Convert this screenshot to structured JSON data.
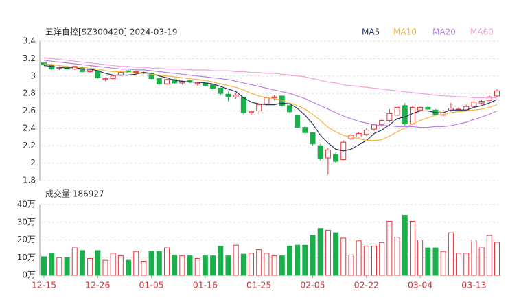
{
  "chart_data": [
    {
      "type": "candlestick",
      "title": "五洋自控[SZ300420] 2024-03-19",
      "up_color": "#e8323c",
      "down_color": "#1aaf4b",
      "ylim": [
        1.8,
        3.4
      ],
      "yticks": [
        1.8,
        2,
        2.2,
        2.4,
        2.6,
        2.8,
        3,
        3.2,
        3.4
      ],
      "grid": true,
      "open": [
        3.15,
        3.13,
        3.09,
        3.1,
        3.08,
        3.1,
        3.05,
        3.06,
        2.96,
        2.97,
        3.01,
        3.06,
        3.04,
        3.03,
        3.03,
        2.97,
        2.91,
        2.96,
        2.92,
        2.95,
        2.91,
        2.92,
        2.9,
        2.86,
        2.79,
        2.76,
        2.75,
        2.58,
        2.6,
        2.68,
        2.75,
        2.77,
        2.66,
        2.55,
        2.41,
        2.35,
        2.2,
        2.06,
        2.1,
        2.04,
        2.28,
        2.3,
        2.33,
        2.39,
        2.44,
        2.49,
        2.55,
        2.66,
        2.45,
        2.61,
        2.64,
        2.61,
        2.55,
        2.6,
        2.62,
        2.61,
        2.65,
        2.69,
        2.72,
        2.77
      ],
      "high": [
        3.15,
        3.14,
        3.11,
        3.12,
        3.12,
        3.11,
        3.08,
        3.07,
        2.98,
        3.01,
        3.05,
        3.07,
        3.06,
        3.05,
        3.04,
        2.98,
        2.97,
        2.97,
        2.95,
        2.96,
        2.93,
        2.93,
        2.91,
        2.87,
        2.82,
        2.8,
        2.76,
        2.6,
        2.68,
        2.76,
        2.78,
        2.77,
        2.67,
        2.56,
        2.42,
        2.35,
        2.22,
        2.17,
        2.13,
        2.26,
        2.34,
        2.36,
        2.4,
        2.45,
        2.5,
        2.62,
        2.66,
        2.69,
        2.66,
        2.65,
        2.66,
        2.62,
        2.61,
        2.69,
        2.64,
        2.67,
        2.72,
        2.73,
        2.78,
        2.85
      ],
      "low": [
        3.12,
        3.07,
        3.07,
        3.08,
        3.07,
        3.04,
        3.04,
        2.97,
        2.94,
        2.95,
        3.0,
        3.04,
        3.02,
        3.02,
        2.96,
        2.89,
        2.9,
        2.91,
        2.9,
        2.92,
        2.89,
        2.88,
        2.85,
        2.78,
        2.71,
        2.74,
        2.56,
        2.55,
        2.56,
        2.66,
        2.72,
        2.65,
        2.58,
        2.4,
        2.33,
        2.2,
        2.03,
        1.87,
        2.0,
        2.03,
        2.26,
        2.29,
        2.31,
        2.37,
        2.42,
        2.47,
        2.55,
        2.43,
        2.44,
        2.6,
        2.61,
        2.55,
        2.53,
        2.59,
        2.6,
        2.6,
        2.64,
        2.67,
        2.71,
        2.76
      ],
      "close": [
        3.13,
        3.08,
        3.1,
        3.08,
        3.11,
        3.05,
        3.07,
        2.98,
        2.97,
        3.0,
        3.04,
        3.05,
        3.05,
        3.04,
        2.97,
        2.91,
        2.96,
        2.92,
        2.94,
        2.93,
        2.92,
        2.89,
        2.86,
        2.8,
        2.76,
        2.78,
        2.58,
        2.59,
        2.67,
        2.75,
        2.76,
        2.66,
        2.59,
        2.41,
        2.35,
        2.22,
        2.05,
        2.15,
        2.02,
        2.24,
        2.32,
        2.34,
        2.38,
        2.44,
        2.49,
        2.57,
        2.64,
        2.45,
        2.64,
        2.64,
        2.62,
        2.56,
        2.6,
        2.63,
        2.62,
        2.65,
        2.7,
        2.71,
        2.76,
        2.83
      ],
      "series": [
        {
          "name": "MA5",
          "color": "#2c3560",
          "values": [
            3.12,
            3.11,
            3.1,
            3.09,
            3.1,
            3.08,
            3.08,
            3.06,
            3.03,
            3.01,
            3.01,
            3.01,
            3.02,
            3.04,
            3.03,
            3.0,
            2.98,
            2.95,
            2.94,
            2.93,
            2.93,
            2.92,
            2.91,
            2.88,
            2.85,
            2.82,
            2.75,
            2.7,
            2.68,
            2.67,
            2.67,
            2.69,
            2.68,
            2.63,
            2.55,
            2.45,
            2.32,
            2.23,
            2.16,
            2.14,
            2.16,
            2.21,
            2.26,
            2.34,
            2.38,
            2.44,
            2.51,
            2.53,
            2.57,
            2.6,
            2.6,
            2.58,
            2.58,
            2.61,
            2.61,
            2.61,
            2.64,
            2.66,
            2.69,
            2.73
          ]
        },
        {
          "name": "MA10",
          "color": "#f2b53c",
          "values": [
            3.14,
            3.13,
            3.12,
            3.11,
            3.1,
            3.1,
            3.09,
            3.08,
            3.06,
            3.05,
            3.05,
            3.04,
            3.03,
            3.03,
            3.02,
            3.01,
            3.0,
            2.99,
            2.98,
            2.97,
            2.96,
            2.95,
            2.93,
            2.91,
            2.89,
            2.87,
            2.84,
            2.8,
            2.77,
            2.75,
            2.74,
            2.72,
            2.69,
            2.66,
            2.62,
            2.56,
            2.49,
            2.41,
            2.36,
            2.32,
            2.3,
            2.28,
            2.26,
            2.26,
            2.27,
            2.31,
            2.36,
            2.4,
            2.45,
            2.49,
            2.52,
            2.55,
            2.56,
            2.58,
            2.59,
            2.6,
            2.61,
            2.62,
            2.64,
            2.67
          ]
        },
        {
          "name": "MA20",
          "color": "#b981e0",
          "values": [
            3.18,
            3.17,
            3.16,
            3.15,
            3.14,
            3.13,
            3.12,
            3.11,
            3.1,
            3.09,
            3.08,
            3.08,
            3.07,
            3.07,
            3.06,
            3.05,
            3.04,
            3.03,
            3.02,
            3.01,
            3.0,
            2.99,
            2.98,
            2.97,
            2.96,
            2.94,
            2.92,
            2.9,
            2.88,
            2.86,
            2.84,
            2.82,
            2.8,
            2.77,
            2.74,
            2.7,
            2.66,
            2.62,
            2.58,
            2.54,
            2.51,
            2.48,
            2.46,
            2.44,
            2.43,
            2.43,
            2.42,
            2.42,
            2.42,
            2.41,
            2.41,
            2.42,
            2.42,
            2.43,
            2.45,
            2.47,
            2.5,
            2.53,
            2.56,
            2.6
          ]
        },
        {
          "name": "MA60",
          "color": "#f3a1d8",
          "values": [
            3.21,
            3.2,
            3.19,
            3.18,
            3.17,
            3.16,
            3.15,
            3.14,
            3.13,
            3.12,
            3.11,
            3.11,
            3.1,
            3.1,
            3.09,
            3.09,
            3.08,
            3.08,
            3.08,
            3.07,
            3.07,
            3.07,
            3.06,
            3.06,
            3.06,
            3.05,
            3.05,
            3.04,
            3.04,
            3.03,
            3.03,
            3.02,
            3.01,
            3.0,
            2.99,
            2.97,
            2.95,
            2.93,
            2.92,
            2.9,
            2.89,
            2.88,
            2.87,
            2.86,
            2.85,
            2.84,
            2.83,
            2.82,
            2.81,
            2.8,
            2.79,
            2.78,
            2.77,
            2.77,
            2.76,
            2.76,
            2.75,
            2.75,
            2.75,
            2.75
          ]
        }
      ]
    },
    {
      "type": "bar",
      "title": "成交量 186927",
      "categories": [
        "12-15",
        null,
        null,
        null,
        null,
        null,
        null,
        "12-26",
        null,
        null,
        null,
        null,
        null,
        null,
        "01-05",
        null,
        null,
        null,
        null,
        null,
        null,
        "01-16",
        null,
        null,
        null,
        null,
        null,
        null,
        "01-25",
        null,
        null,
        null,
        null,
        null,
        null,
        "02-05",
        null,
        null,
        null,
        null,
        null,
        null,
        "02-22",
        null,
        null,
        null,
        null,
        null,
        null,
        "03-04",
        null,
        null,
        null,
        null,
        null,
        null,
        "03-13",
        null,
        null,
        null
      ],
      "values": [
        10.5,
        12.5,
        10,
        10,
        15.5,
        14,
        9.5,
        14,
        8.5,
        12.5,
        11,
        8.5,
        13.5,
        8,
        13.5,
        13.5,
        15.5,
        11.5,
        11,
        11,
        9.5,
        11,
        11,
        16.5,
        11,
        17,
        12,
        12.5,
        14.5,
        12.5,
        11,
        11,
        16.5,
        17,
        17,
        22.5,
        26.5,
        25.5,
        24,
        21,
        11.5,
        19.5,
        16.5,
        16.5,
        18.5,
        30.5,
        21.5,
        34,
        30.5,
        20,
        15.5,
        15.5,
        13.5,
        24,
        12.5,
        12.5,
        20,
        15.5,
        22.5,
        18.69
      ],
      "ylim": [
        0,
        40
      ],
      "yticks": [
        {
          "value": 0,
          "label": "0万"
        },
        {
          "value": 10,
          "label": "10万"
        },
        {
          "value": 20,
          "label": "20万"
        },
        {
          "value": 30,
          "label": "30万"
        },
        {
          "value": 40,
          "label": "40万"
        }
      ]
    }
  ]
}
